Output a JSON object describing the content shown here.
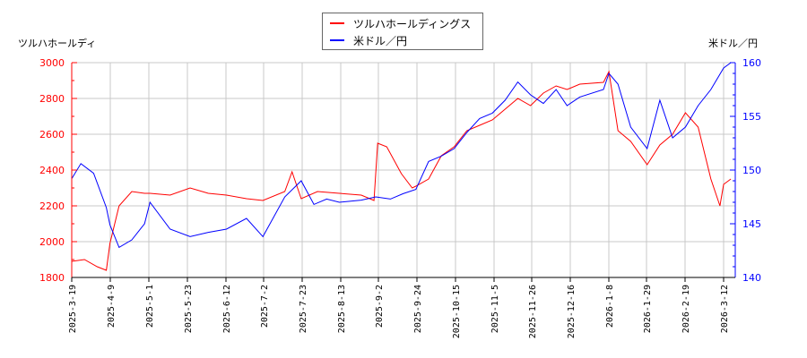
{
  "legend": {
    "items": [
      {
        "label": "ツルハホールディングス",
        "color": "#ff0000"
      },
      {
        "label": "米ドル／円",
        "color": "#0000ff"
      }
    ]
  },
  "axes": {
    "left_title": "ツルハホールディ",
    "right_title": "米ドル／円"
  },
  "chart_data": {
    "type": "line",
    "title": "",
    "xlabel": "",
    "ylabel_left": "ツルハホールディ",
    "ylabel_right": "米ドル／円",
    "ylim_left": [
      1800,
      3000
    ],
    "ylim_right": [
      140,
      160
    ],
    "yticks_left": [
      1800,
      2000,
      2200,
      2400,
      2600,
      2800,
      3000
    ],
    "yticks_right": [
      140,
      145,
      150,
      155,
      160
    ],
    "x_ticks": [
      "2025-3-19",
      "2025-4-9",
      "2025-5-1",
      "2025-5-23",
      "2025-6-12",
      "2025-7-2",
      "2025-7-23",
      "2025-8-13",
      "2025-9-2",
      "2025-9-24",
      "2025-10-15",
      "2025-11-5",
      "2025-11-26",
      "2025-12-16",
      "2026-1-8",
      "2026-1-29",
      "2026-2-19",
      "2026-3-12"
    ],
    "grid": true,
    "legend_position": "top-center",
    "series": [
      {
        "name": "ツルハホールディングス",
        "axis": "left",
        "color": "#ff0000",
        "x": [
          "2025-3-19",
          "2025-3-26",
          "2025-4-2",
          "2025-4-7",
          "2025-4-9",
          "2025-4-14",
          "2025-4-21",
          "2025-4-28",
          "2025-5-1",
          "2025-5-12",
          "2025-5-23",
          "2025-6-2",
          "2025-6-12",
          "2025-6-23",
          "2025-7-2",
          "2025-7-14",
          "2025-7-18",
          "2025-7-23",
          "2025-8-1",
          "2025-8-13",
          "2025-8-25",
          "2025-9-1",
          "2025-9-3",
          "2025-9-8",
          "2025-9-16",
          "2025-9-22",
          "2025-9-24",
          "2025-10-1",
          "2025-10-8",
          "2025-10-15",
          "2025-10-22",
          "2025-10-29",
          "2025-11-5",
          "2025-11-12",
          "2025-11-19",
          "2025-11-26",
          "2025-12-3",
          "2025-12-10",
          "2025-12-16",
          "2025-12-23",
          "2026-1-5",
          "2026-1-8",
          "2026-1-13",
          "2026-1-20",
          "2026-1-29",
          "2026-2-5",
          "2026-2-12",
          "2026-2-19",
          "2026-2-26",
          "2026-3-5",
          "2026-3-10",
          "2026-3-12",
          "2026-3-16"
        ],
        "values": [
          1890,
          1900,
          1860,
          1840,
          1990,
          2200,
          2280,
          2270,
          2270,
          2260,
          2300,
          2270,
          2260,
          2240,
          2230,
          2280,
          2390,
          2240,
          2280,
          2270,
          2260,
          2230,
          2550,
          2530,
          2380,
          2300,
          2310,
          2350,
          2480,
          2530,
          2620,
          2650,
          2680,
          2740,
          2800,
          2760,
          2830,
          2870,
          2850,
          2880,
          2890,
          2950,
          2620,
          2560,
          2430,
          2540,
          2600,
          2720,
          2640,
          2350,
          2200,
          2320,
          2350
        ]
      },
      {
        "name": "米ドル／円",
        "axis": "right",
        "color": "#0000ff",
        "x": [
          "2025-3-19",
          "2025-3-24",
          "2025-3-31",
          "2025-4-7",
          "2025-4-9",
          "2025-4-14",
          "2025-4-21",
          "2025-4-28",
          "2025-5-1",
          "2025-5-12",
          "2025-5-23",
          "2025-6-2",
          "2025-6-12",
          "2025-6-23",
          "2025-7-2",
          "2025-7-14",
          "2025-7-23",
          "2025-7-30",
          "2025-8-6",
          "2025-8-13",
          "2025-8-25",
          "2025-9-2",
          "2025-9-10",
          "2025-9-17",
          "2025-9-24",
          "2025-10-1",
          "2025-10-8",
          "2025-10-15",
          "2025-10-22",
          "2025-10-29",
          "2025-11-5",
          "2025-11-12",
          "2025-11-19",
          "2025-11-26",
          "2025-12-3",
          "2025-12-10",
          "2025-12-16",
          "2025-12-23",
          "2026-1-5",
          "2026-1-8",
          "2026-1-13",
          "2026-1-20",
          "2026-1-29",
          "2026-2-5",
          "2026-2-12",
          "2026-2-19",
          "2026-2-26",
          "2026-3-5",
          "2026-3-12",
          "2026-3-16"
        ],
        "values": [
          149.2,
          150.6,
          149.7,
          146.5,
          144.9,
          142.8,
          143.5,
          145.0,
          147.0,
          144.5,
          143.8,
          144.2,
          144.5,
          145.5,
          143.8,
          147.5,
          149.0,
          146.8,
          147.3,
          147.0,
          147.2,
          147.5,
          147.3,
          147.8,
          148.2,
          150.8,
          151.3,
          152.0,
          153.5,
          154.8,
          155.3,
          156.5,
          158.2,
          157.0,
          156.2,
          157.5,
          156.0,
          156.8,
          157.5,
          159.0,
          158.0,
          154.0,
          152.0,
          156.5,
          153.0,
          154.0,
          156.0,
          157.5,
          159.5,
          160.0
        ]
      }
    ]
  }
}
